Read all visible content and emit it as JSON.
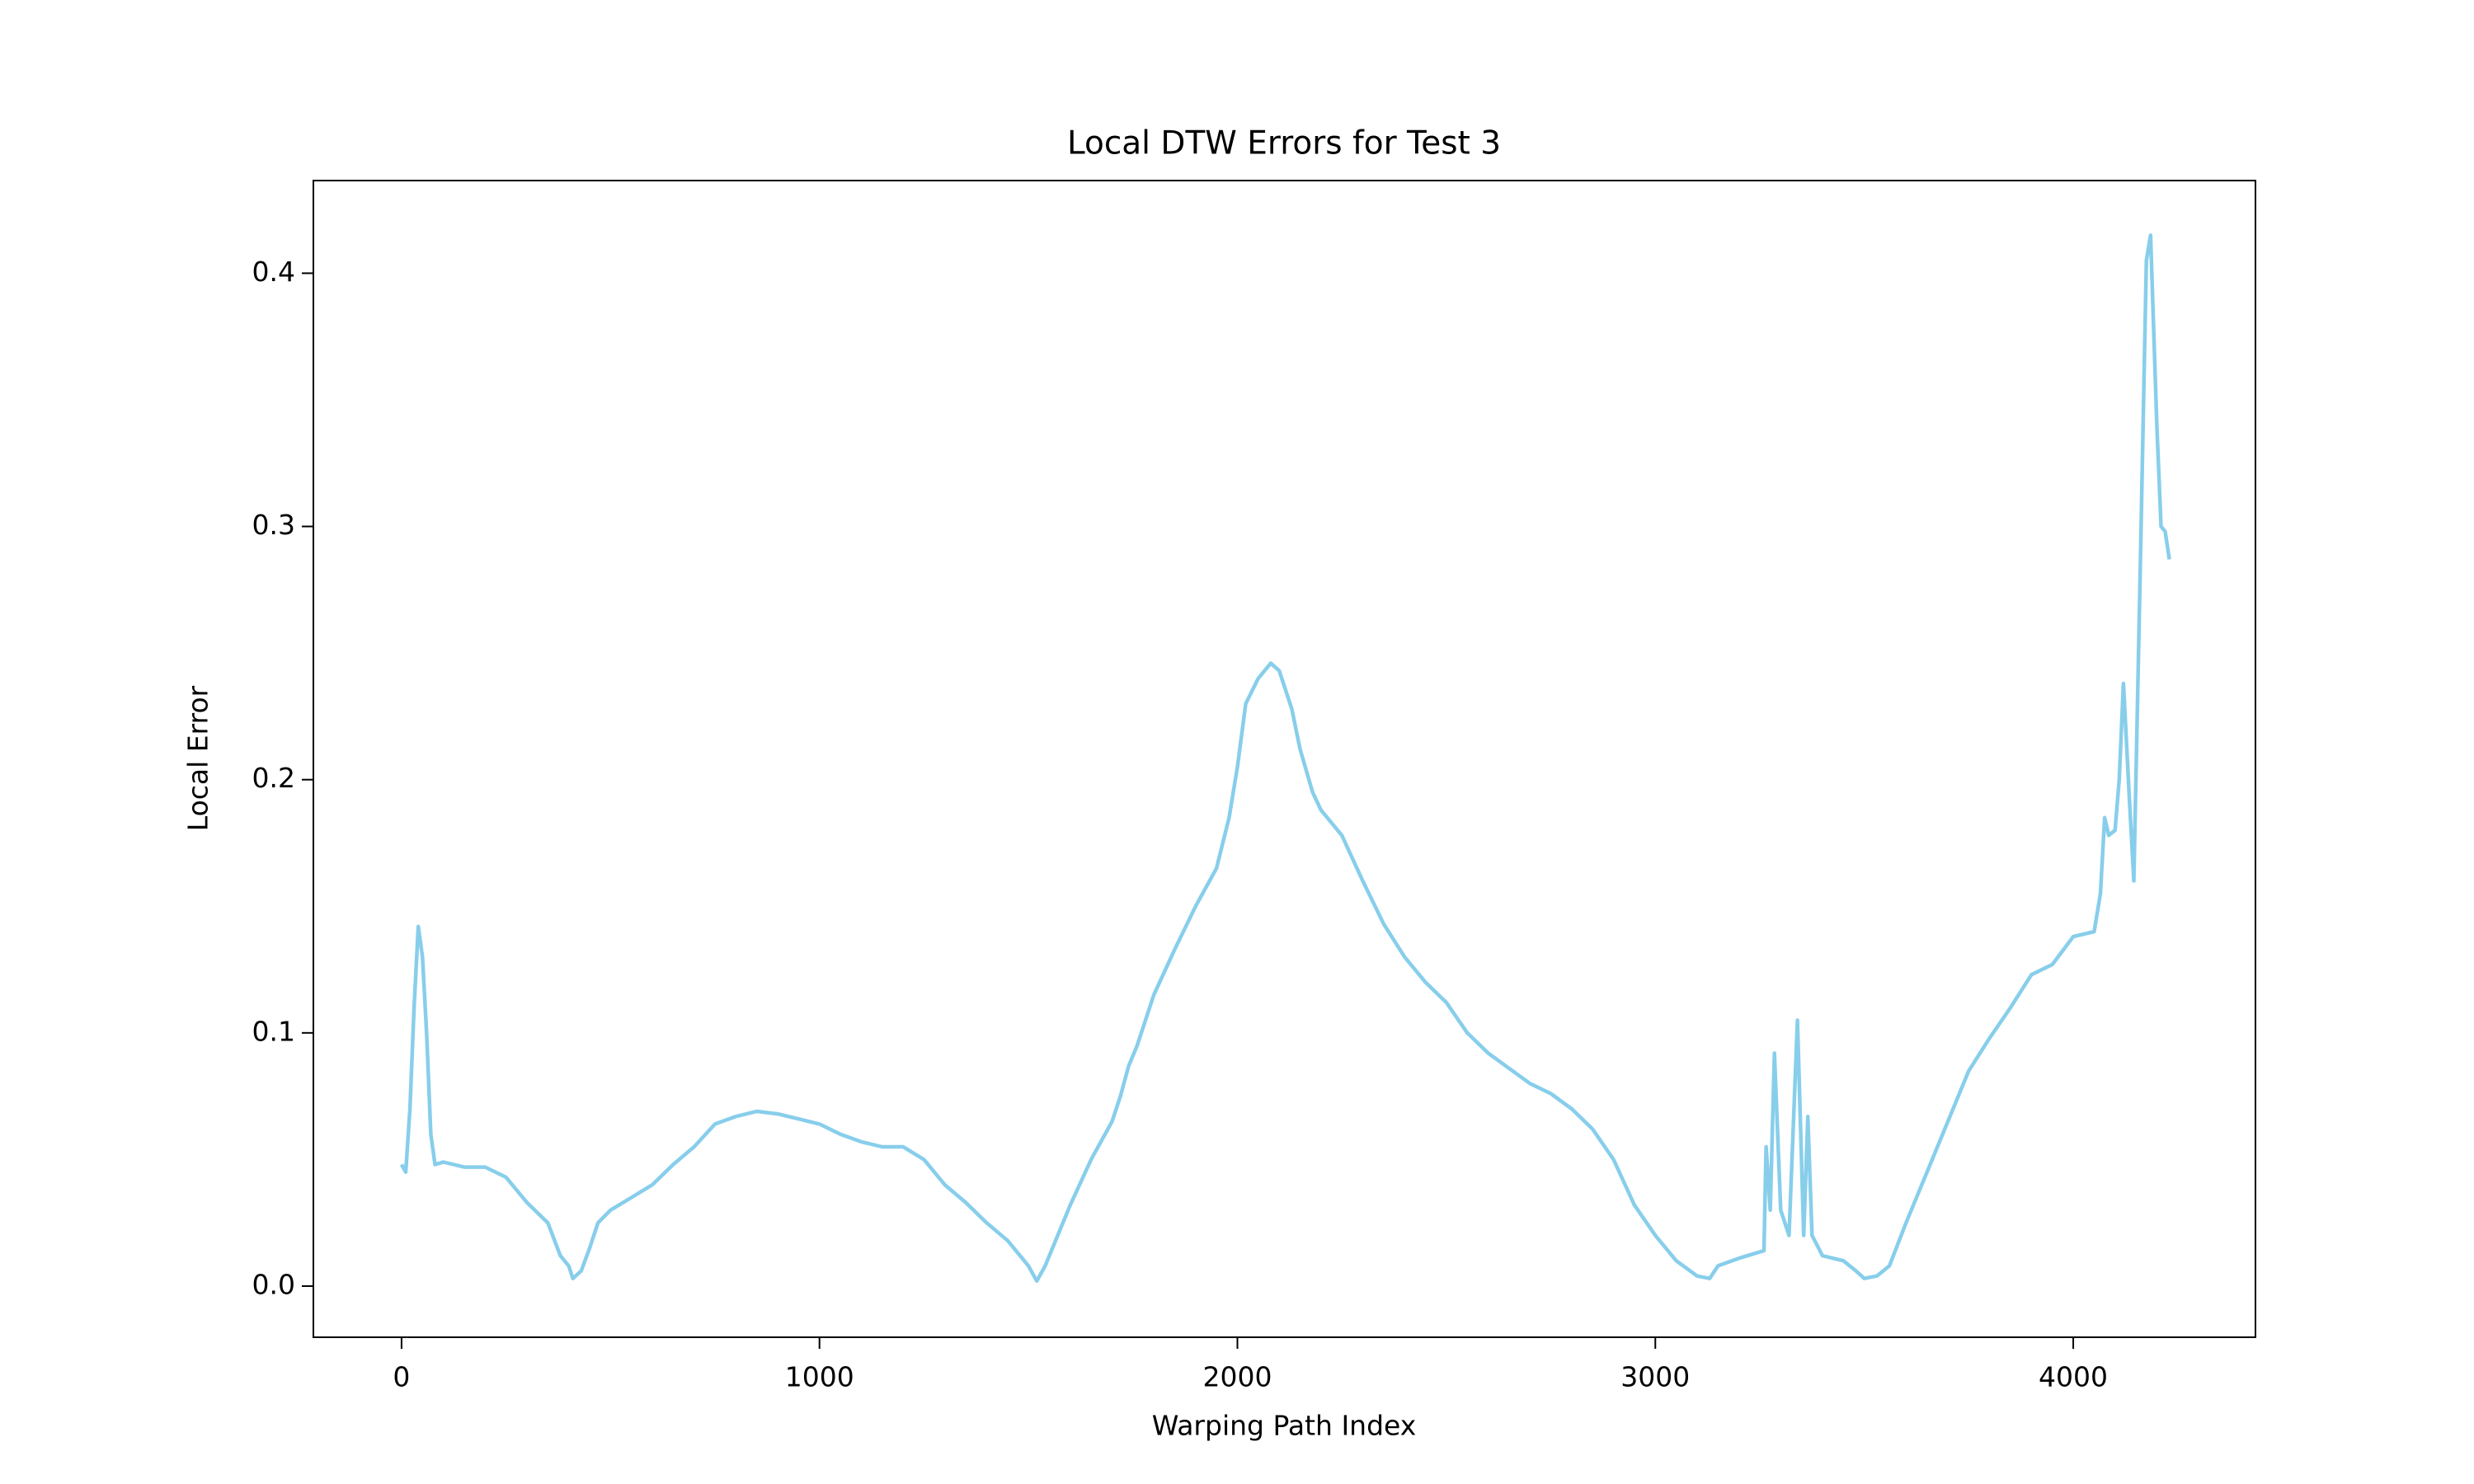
{
  "chart_data": {
    "type": "line",
    "title": "Local DTW Errors for Test 3",
    "x_label": "Warping Path Index",
    "y_label": "Local Error",
    "xlim": [
      -211,
      4436
    ],
    "ylim": [
      -0.0202,
      0.4366
    ],
    "xticks": [
      0,
      1000,
      2000,
      3000,
      4000
    ],
    "yticks": [
      {
        "value": 0,
        "label": "0.0"
      },
      0.1,
      0.2,
      0.3,
      0.4
    ],
    "grid": false,
    "series": [
      {
        "color": "#87ceeb",
        "x": [
          0,
          10,
          20,
          30,
          40,
          50,
          60,
          70,
          80,
          100,
          150,
          200,
          250,
          300,
          350,
          380,
          400,
          410,
          430,
          450,
          470,
          500,
          550,
          600,
          650,
          700,
          750,
          800,
          850,
          900,
          950,
          1000,
          1050,
          1100,
          1150,
          1200,
          1250,
          1300,
          1350,
          1400,
          1450,
          1500,
          1520,
          1540,
          1570,
          1600,
          1650,
          1700,
          1720,
          1740,
          1760,
          1800,
          1850,
          1900,
          1950,
          1980,
          2000,
          2020,
          2050,
          2080,
          2100,
          2130,
          2150,
          2180,
          2200,
          2250,
          2300,
          2350,
          2400,
          2450,
          2500,
          2550,
          2600,
          2650,
          2700,
          2750,
          2800,
          2850,
          2900,
          2950,
          3000,
          3050,
          3100,
          3130,
          3150,
          3200,
          3260,
          3265,
          3275,
          3285,
          3300,
          3320,
          3340,
          3355,
          3365,
          3375,
          3400,
          3450,
          3480,
          3500,
          3530,
          3560,
          3600,
          3650,
          3700,
          3750,
          3800,
          3850,
          3900,
          3950,
          4000,
          4050,
          4065,
          4075,
          4085,
          4100,
          4110,
          4120,
          4135,
          4145,
          4160,
          4175,
          4185,
          4200,
          4210,
          4220,
          4230
        ],
        "values": [
          0.048,
          0.045,
          0.07,
          0.11,
          0.142,
          0.13,
          0.1,
          0.06,
          0.048,
          0.049,
          0.047,
          0.047,
          0.043,
          0.033,
          0.025,
          0.012,
          0.008,
          0.003,
          0.006,
          0.015,
          0.025,
          0.03,
          0.035,
          0.04,
          0.048,
          0.055,
          0.064,
          0.067,
          0.069,
          0.068,
          0.066,
          0.064,
          0.06,
          0.057,
          0.055,
          0.055,
          0.05,
          0.04,
          0.033,
          0.025,
          0.018,
          0.008,
          0.002,
          0.008,
          0.02,
          0.032,
          0.05,
          0.065,
          0.075,
          0.087,
          0.095,
          0.115,
          0.133,
          0.15,
          0.165,
          0.185,
          0.205,
          0.23,
          0.24,
          0.246,
          0.243,
          0.228,
          0.212,
          0.195,
          0.188,
          0.178,
          0.16,
          0.143,
          0.13,
          0.12,
          0.112,
          0.1,
          0.092,
          0.086,
          0.08,
          0.076,
          0.07,
          0.062,
          0.05,
          0.032,
          0.02,
          0.01,
          0.004,
          0.003,
          0.008,
          0.011,
          0.014,
          0.055,
          0.03,
          0.092,
          0.03,
          0.02,
          0.105,
          0.02,
          0.067,
          0.02,
          0.012,
          0.01,
          0.006,
          0.003,
          0.004,
          0.008,
          0.025,
          0.045,
          0.065,
          0.085,
          0.098,
          0.11,
          0.123,
          0.127,
          0.138,
          0.14,
          0.155,
          0.185,
          0.178,
          0.18,
          0.2,
          0.238,
          0.19,
          0.16,
          0.28,
          0.405,
          0.415,
          0.34,
          0.3,
          0.298,
          0.287
        ]
      }
    ]
  }
}
